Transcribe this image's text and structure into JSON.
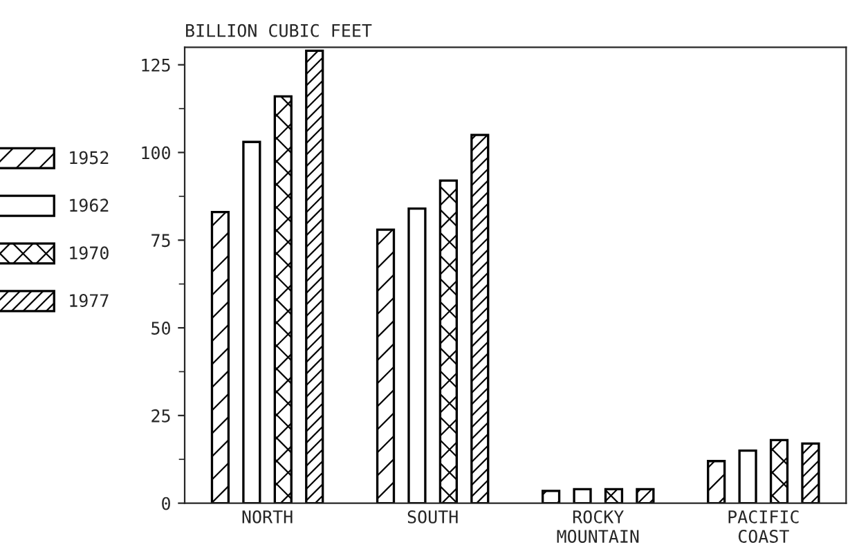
{
  "chart_data": {
    "type": "bar",
    "ylabel": "BILLION CUBIC FEET",
    "categories": [
      "NORTH",
      "SOUTH",
      "ROCKY\nMOUNTAIN",
      "PACIFIC\nCOAST"
    ],
    "series": [
      {
        "name": "1952",
        "color": "#000000",
        "values": [
          83,
          78,
          3.5,
          12
        ]
      },
      {
        "name": "1962",
        "color": "#000000",
        "values": [
          103,
          84,
          4,
          15
        ]
      },
      {
        "name": "1970",
        "color": "#000000",
        "values": [
          116,
          92,
          4,
          18
        ]
      },
      {
        "name": "1977",
        "color": "#000000",
        "values": [
          129,
          105,
          4,
          17
        ]
      }
    ],
    "ylim": [
      0,
      130
    ],
    "yticks": [
      0,
      25,
      50,
      75,
      100,
      125
    ],
    "grid": false,
    "legend": "left"
  }
}
